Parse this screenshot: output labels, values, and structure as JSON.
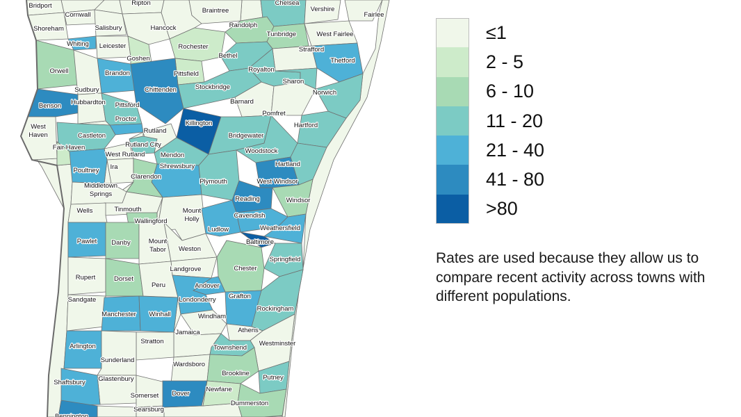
{
  "legend": {
    "bins": [
      {
        "label": "≤1",
        "color": "#f0f7ea"
      },
      {
        "label": "2 - 5",
        "color": "#cdebca"
      },
      {
        "label": "6 - 10",
        "color": "#a8dab4"
      },
      {
        "label": "11 - 20",
        "color": "#7ccbc4"
      },
      {
        "label": "21 - 40",
        "color": "#4eb1d7"
      },
      {
        "label": "41 - 80",
        "color": "#2d8bc0"
      },
      {
        "label": ">80",
        "color": "#0b5ea4"
      }
    ]
  },
  "note": "Rates are used because they allow us to compare recent activity across towns with different populations.",
  "towns": [
    {
      "name": "Bridport",
      "bin": 0
    },
    {
      "name": "Ripton",
      "bin": 0
    },
    {
      "name": "Braintree",
      "bin": 0
    },
    {
      "name": "Chelsea",
      "bin": 3
    },
    {
      "name": "Vershire",
      "bin": 0
    },
    {
      "name": "Fairlee",
      "bin": 0
    },
    {
      "name": "Cornwall",
      "bin": 0
    },
    {
      "name": "Shoreham",
      "bin": 0
    },
    {
      "name": "Salisbury",
      "bin": 0
    },
    {
      "name": "Hancock",
      "bin": 0
    },
    {
      "name": "Randolph",
      "bin": 2
    },
    {
      "name": "Tunbridge",
      "bin": 2
    },
    {
      "name": "West Fairlee",
      "bin": 0
    },
    {
      "name": "Whiting",
      "bin": 4
    },
    {
      "name": "Leicester",
      "bin": 0
    },
    {
      "name": "Goshen",
      "bin": 1
    },
    {
      "name": "Rochester",
      "bin": 1
    },
    {
      "name": "Strafford",
      "bin": 0
    },
    {
      "name": "Bethel",
      "bin": 3
    },
    {
      "name": "Thetford",
      "bin": 4
    },
    {
      "name": "Orwell",
      "bin": 2
    },
    {
      "name": "Brandon",
      "bin": 4
    },
    {
      "name": "Pittsfield",
      "bin": 1
    },
    {
      "name": "Royalton",
      "bin": 3
    },
    {
      "name": "Sharon",
      "bin": 3
    },
    {
      "name": "Sudbury",
      "bin": 0
    },
    {
      "name": "Chittenden",
      "bin": 5
    },
    {
      "name": "Stockbridge",
      "bin": 3
    },
    {
      "name": "Norwich",
      "bin": 3
    },
    {
      "name": "Benson",
      "bin": 5
    },
    {
      "name": "Hubbardton",
      "bin": 0
    },
    {
      "name": "Pittsford",
      "bin": 3
    },
    {
      "name": "Barnard",
      "bin": 0
    },
    {
      "name": "Pomfret",
      "bin": 0
    },
    {
      "name": "Proctor",
      "bin": 4
    },
    {
      "name": "Killington",
      "bin": 6
    },
    {
      "name": "Hartford",
      "bin": 3
    },
    {
      "name": "West Haven",
      "bin": 0
    },
    {
      "name": "Rutland",
      "bin": 0
    },
    {
      "name": "Castleton",
      "bin": 3
    },
    {
      "name": "Bridgewater",
      "bin": 3
    },
    {
      "name": "Rutland City",
      "bin": 3
    },
    {
      "name": "Fair Haven",
      "bin": 1
    },
    {
      "name": "West Rutland",
      "bin": 0
    },
    {
      "name": "Woodstock",
      "bin": 3
    },
    {
      "name": "Mendon",
      "bin": 3
    },
    {
      "name": "Hartland",
      "bin": 3
    },
    {
      "name": "Ira",
      "bin": 0
    },
    {
      "name": "Shrewsbury",
      "bin": 4
    },
    {
      "name": "Poultney",
      "bin": 4
    },
    {
      "name": "Clarendon",
      "bin": 2
    },
    {
      "name": "Plymouth",
      "bin": 3
    },
    {
      "name": "West Windsor",
      "bin": 5
    },
    {
      "name": "Middletown Springs",
      "bin": 0
    },
    {
      "name": "Windsor",
      "bin": 2
    },
    {
      "name": "Reading",
      "bin": 5
    },
    {
      "name": "Tinmouth",
      "bin": 0
    },
    {
      "name": "Wells",
      "bin": 0
    },
    {
      "name": "Mount Holly",
      "bin": 0
    },
    {
      "name": "Wallingford",
      "bin": 2
    },
    {
      "name": "Cavendish",
      "bin": 4
    },
    {
      "name": "Ludlow",
      "bin": 4
    },
    {
      "name": "Weathersfield",
      "bin": 4
    },
    {
      "name": "Pawlet",
      "bin": 4
    },
    {
      "name": "Danby",
      "bin": 2
    },
    {
      "name": "Mount Tabor",
      "bin": 0
    },
    {
      "name": "Baltimore",
      "bin": 6
    },
    {
      "name": "Weston",
      "bin": 0
    },
    {
      "name": "Springfield",
      "bin": 3
    },
    {
      "name": "Landgrove",
      "bin": 0
    },
    {
      "name": "Chester",
      "bin": 2
    },
    {
      "name": "Rupert",
      "bin": 0
    },
    {
      "name": "Dorset",
      "bin": 2
    },
    {
      "name": "Peru",
      "bin": 0
    },
    {
      "name": "Andover",
      "bin": 4
    },
    {
      "name": "Sandgate",
      "bin": 0
    },
    {
      "name": "Londonderry",
      "bin": 4
    },
    {
      "name": "Grafton",
      "bin": 4
    },
    {
      "name": "Rockingham",
      "bin": 3
    },
    {
      "name": "Manchester",
      "bin": 4
    },
    {
      "name": "Winhall",
      "bin": 4
    },
    {
      "name": "Windham",
      "bin": 0
    },
    {
      "name": "Athens",
      "bin": 0
    },
    {
      "name": "Jamaica",
      "bin": 0
    },
    {
      "name": "Stratton",
      "bin": 0
    },
    {
      "name": "Westminster",
      "bin": 0
    },
    {
      "name": "Townshend",
      "bin": 3
    },
    {
      "name": "Arlington",
      "bin": 4
    },
    {
      "name": "Sunderland",
      "bin": 0
    },
    {
      "name": "Wardsboro",
      "bin": 0
    },
    {
      "name": "Brookline",
      "bin": 2
    },
    {
      "name": "Putney",
      "bin": 3
    },
    {
      "name": "Glastenbury",
      "bin": 0
    },
    {
      "name": "Shaftsbury",
      "bin": 4
    },
    {
      "name": "Somerset",
      "bin": 0
    },
    {
      "name": "Dover",
      "bin": 5
    },
    {
      "name": "Newfane",
      "bin": 1
    },
    {
      "name": "Dummerston",
      "bin": 2
    },
    {
      "name": "Searsburg",
      "bin": 0
    },
    {
      "name": "Bennington",
      "bin": 5
    }
  ]
}
